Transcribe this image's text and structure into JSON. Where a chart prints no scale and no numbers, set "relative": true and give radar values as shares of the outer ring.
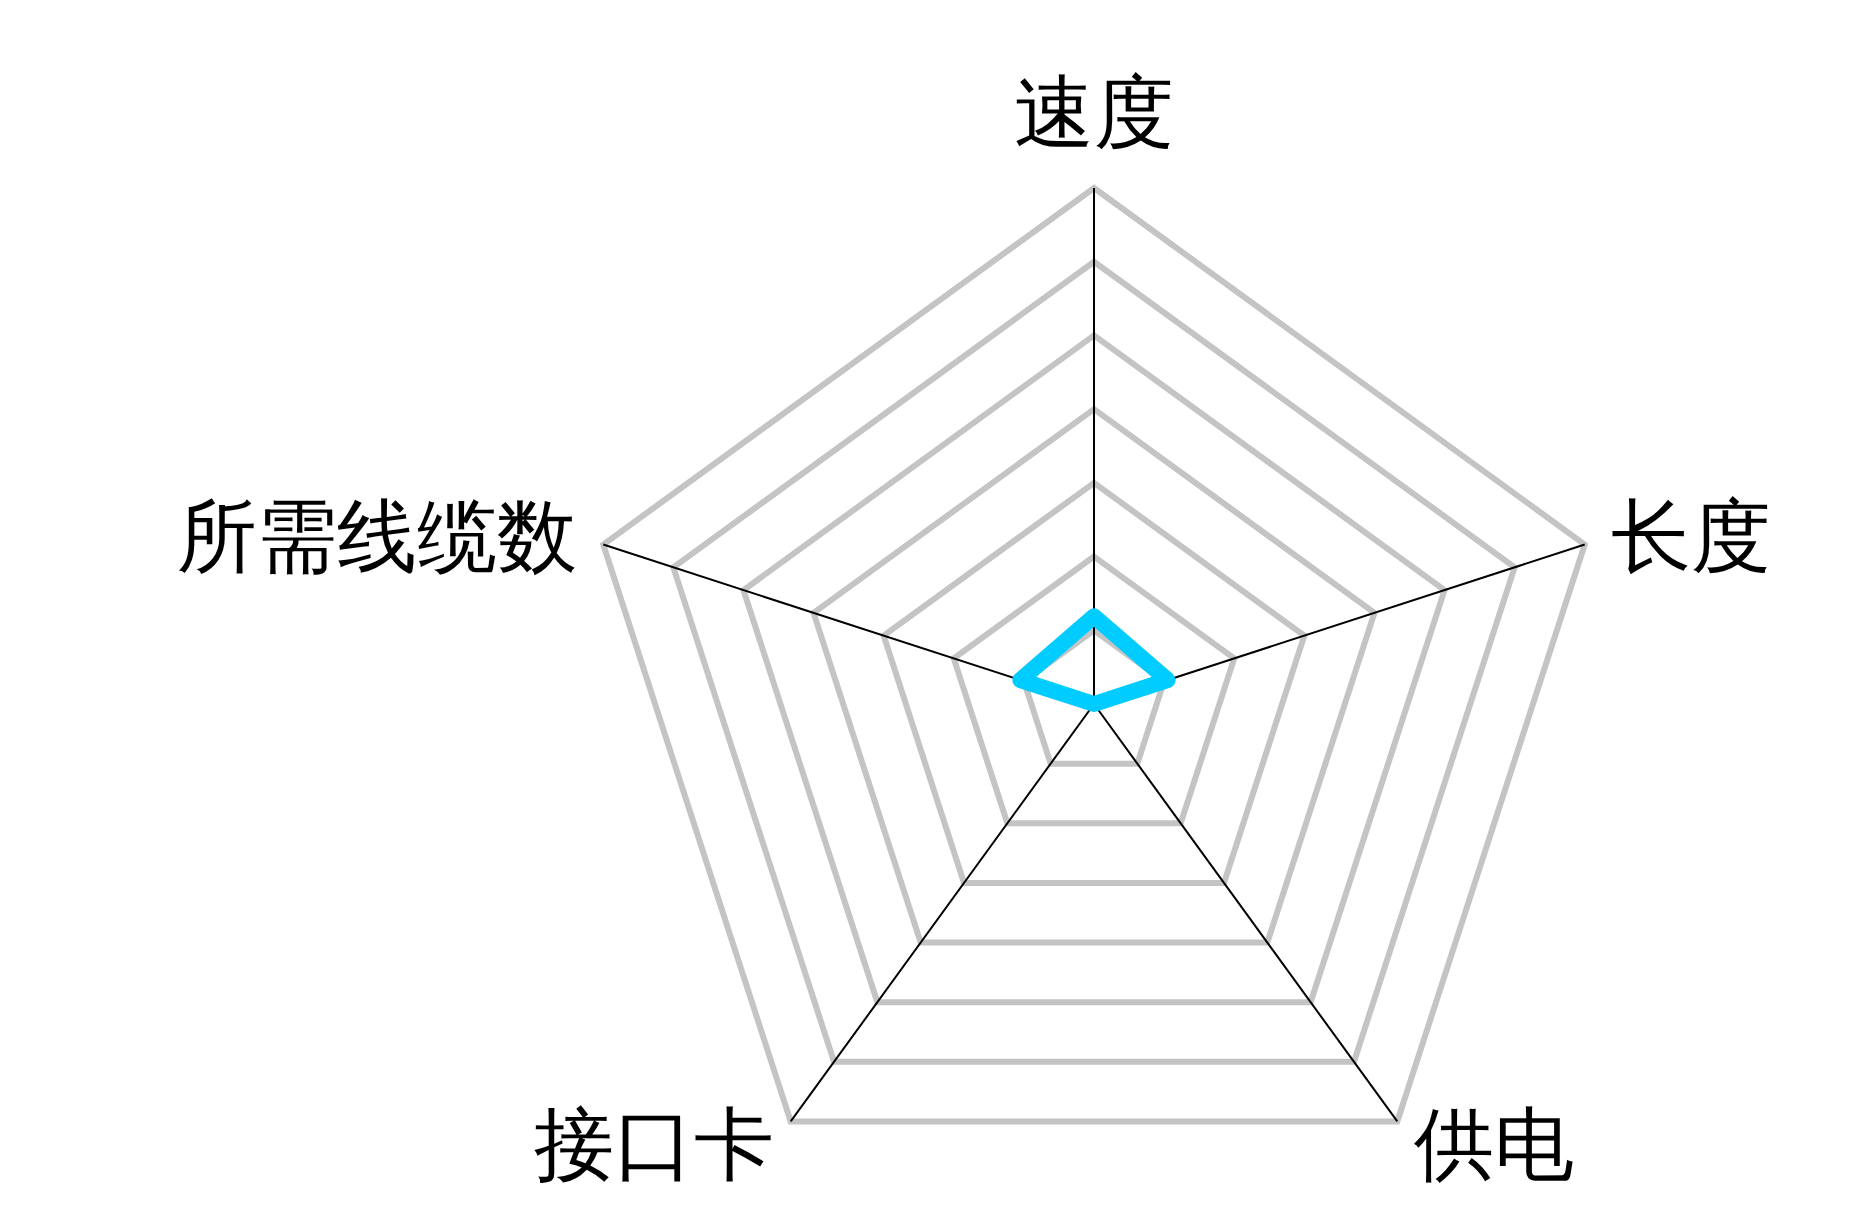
{
  "chart_data": {
    "type": "radar",
    "relative": true,
    "categories": [
      "速度",
      "长度",
      "供电",
      "接口卡",
      "所需线缆数"
    ],
    "series": [
      {
        "color": "#00ccff",
        "values": [
          0.17,
          0.15,
          0,
          0,
          0.15
        ]
      }
    ]
  }
}
